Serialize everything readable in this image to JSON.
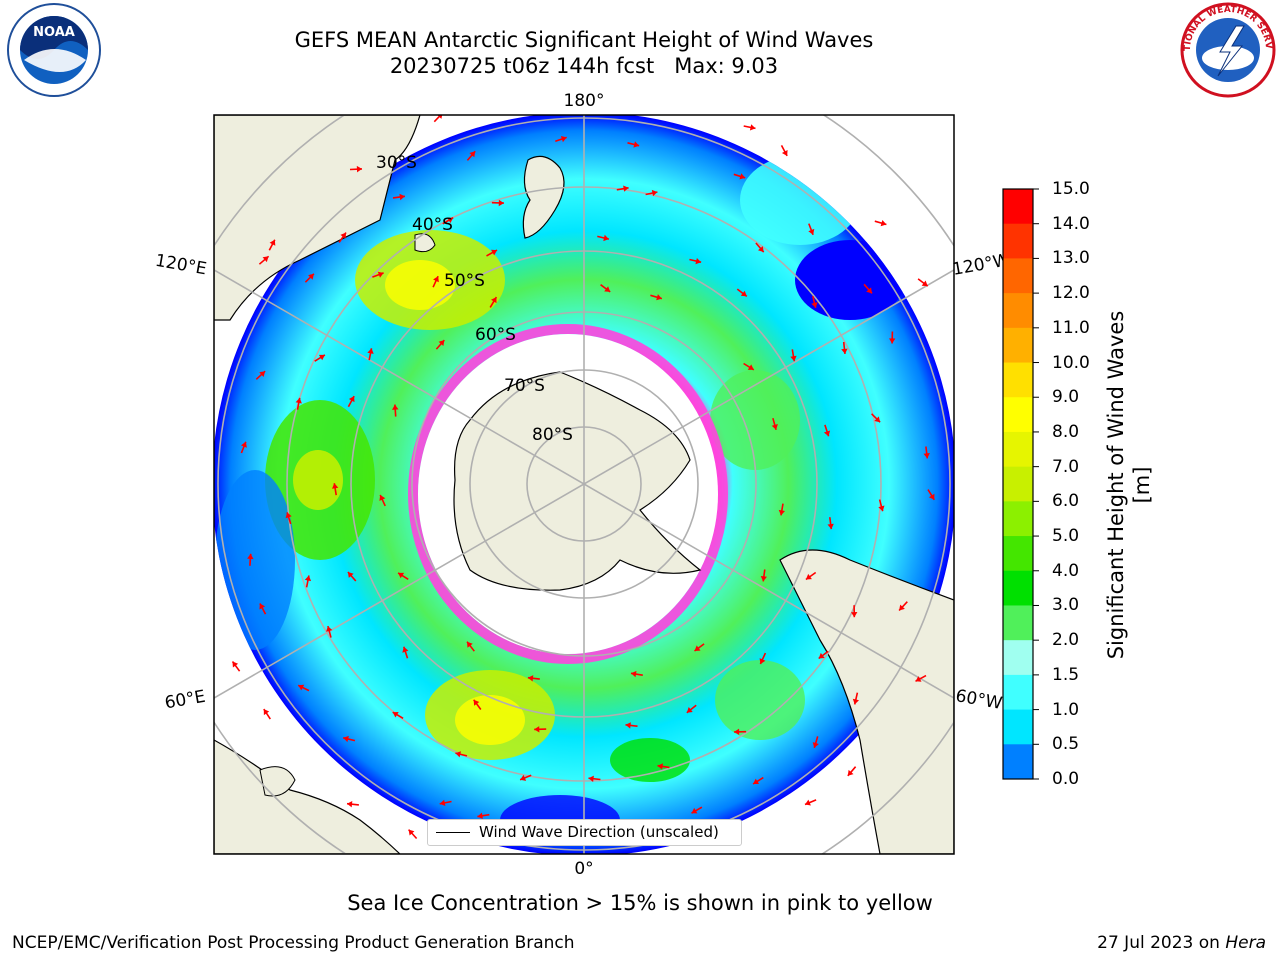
{
  "title_line1": "GEFS MEAN Antarctic Significant Height of Wind Waves",
  "title_line2": "20230725 t06z 144h fcst   Max: 9.03",
  "map": {
    "lon_labels": [
      "180°",
      "120°E",
      "120°W",
      "60°E",
      "60°W",
      "0°"
    ],
    "lat_labels": [
      "30°S",
      "40°S",
      "50°S",
      "60°S",
      "70°S",
      "80°S"
    ]
  },
  "legend": {
    "label": "Wind Wave Direction (unscaled)"
  },
  "colorbar": {
    "label": "Significant Height of Wind Waves [m]",
    "ticks": [
      "15.0",
      "14.0",
      "13.0",
      "12.0",
      "11.0",
      "10.0",
      "9.0",
      "8.0",
      "7.0",
      "6.0",
      "5.0",
      "4.0",
      "3.0",
      "2.0",
      "1.5",
      "1.0",
      "0.5",
      "0.0"
    ],
    "colors": [
      "#ff0000",
      "#ff3300",
      "#ff6600",
      "#ff8c00",
      "#ffb000",
      "#ffe000",
      "#ffff00",
      "#e6f500",
      "#c8f000",
      "#8cf000",
      "#44e600",
      "#00e000",
      "#50f05a",
      "#a0fff0",
      "#40ffff",
      "#00e6ff",
      "#0080ff",
      "#0000ff"
    ]
  },
  "footnote": "Sea Ice Concentration > 15% is shown in pink to yellow",
  "credit_left": "NCEP/EMC/Verification Post Processing Product Generation Branch",
  "credit_right_prefix": "27 Jul 2023 on ",
  "credit_right_host": "Hera",
  "logos": {
    "left": "NOAA",
    "right": "NATIONAL WEATHER SERVICE"
  },
  "icons": [
    "noaa-logo",
    "nws-logo",
    "wind-arrow-icon"
  ]
}
